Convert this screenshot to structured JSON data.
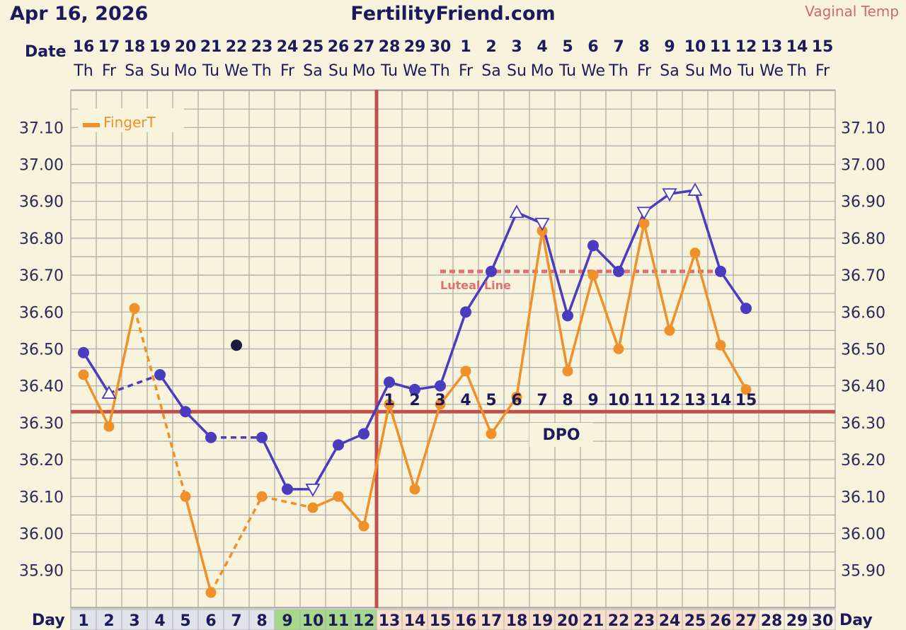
{
  "header": {
    "date": "Apr 16, 2026",
    "site": "FertilityFriend.com",
    "temp_type": "Vaginal Temp",
    "date_label": "Date",
    "day_label": "Day"
  },
  "colors": {
    "background": "#f7f3dc",
    "grid": "#aaaaaa",
    "primary_temp": "#4a3bbf",
    "finger_temp": "#f0902a",
    "coverline": "#c0504d",
    "luteal": "#e07070",
    "dpo_text": "#1c1a5c",
    "fertile_cell": "#a6d88a",
    "luteal_cell": "#fadfc8",
    "early_cell": "#e2e2ea"
  },
  "chart_data": {
    "type": "line",
    "title": "FertilityFriend.com",
    "ylim": [
      35.82,
      37.2
    ],
    "yticks": [
      "35.90",
      "36.00",
      "36.10",
      "36.20",
      "36.30",
      "36.40",
      "36.50",
      "36.60",
      "36.70",
      "36.80",
      "36.90",
      "37.00",
      "37.10"
    ],
    "dates": [
      "16",
      "17",
      "18",
      "19",
      "20",
      "21",
      "22",
      "23",
      "24",
      "25",
      "26",
      "27",
      "28",
      "29",
      "30",
      "1",
      "2",
      "3",
      "4",
      "5",
      "6",
      "7",
      "8",
      "9",
      "10",
      "11",
      "12",
      "13",
      "14",
      "15"
    ],
    "weekdays": [
      "Th",
      "Fr",
      "Sa",
      "Su",
      "Mo",
      "Tu",
      "We",
      "Th",
      "Fr",
      "Sa",
      "Su",
      "Mo",
      "Tu",
      "We",
      "Th",
      "Fr",
      "Sa",
      "Su",
      "Mo",
      "Tu",
      "We",
      "Th",
      "Fr",
      "Sa",
      "Su",
      "Mo",
      "Tu",
      "We",
      "Th",
      "Fr"
    ],
    "cycle_days": [
      "1",
      "2",
      "3",
      "4",
      "5",
      "6",
      "7",
      "8",
      "9",
      "10",
      "11",
      "12",
      "13",
      "14",
      "15",
      "16",
      "17",
      "18",
      "19",
      "20",
      "21",
      "22",
      "23",
      "24",
      "25",
      "26",
      "27",
      "28",
      "29",
      "30"
    ],
    "fertile_days": [
      9,
      10,
      11,
      12
    ],
    "luteal_days": [
      13,
      27
    ],
    "series": [
      {
        "values": [
          36.49,
          36.38,
          null,
          36.43,
          36.33,
          36.26,
          null,
          36.26,
          36.12,
          36.12,
          36.24,
          36.27,
          36.41,
          36.39,
          36.4,
          36.6,
          36.71,
          36.87,
          36.84,
          36.59,
          36.78,
          36.71,
          36.87,
          36.92,
          36.93,
          36.71,
          36.61,
          null,
          null,
          null
        ],
        "markers": [
          "dot",
          "tri-up",
          "none",
          "dot",
          "dot",
          "dot",
          "none",
          "dot",
          "dot",
          "tri-down",
          "dot",
          "dot",
          "dot",
          "dot",
          "dot",
          "dot",
          "dot",
          "tri-up",
          "tri-down",
          "dot",
          "dot",
          "dot",
          "tri-down",
          "tri-down",
          "tri-up",
          "dot",
          "dot",
          "none",
          "none",
          "none"
        ]
      },
      {
        "name": "FingerT",
        "values": [
          36.43,
          36.29,
          36.61,
          null,
          36.1,
          35.84,
          null,
          36.1,
          null,
          36.07,
          36.1,
          36.02,
          36.35,
          36.12,
          36.35,
          36.44,
          36.27,
          36.37,
          36.82,
          36.44,
          36.7,
          36.5,
          36.84,
          36.55,
          36.76,
          36.51,
          36.39,
          null,
          null,
          null
        ]
      }
    ],
    "discarded_points": [
      {
        "day": 7,
        "value": 36.51
      }
    ],
    "coverline": 36.33,
    "ovulation_day": 12,
    "luteal_line": {
      "value": 36.71,
      "from_day": 15,
      "to_day": 26,
      "label": "Luteal Line"
    },
    "dpo": {
      "label": "DPO",
      "start_day": 13,
      "numbers": [
        "1",
        "2",
        "3",
        "4",
        "5",
        "6",
        "7",
        "8",
        "9",
        "10",
        "11",
        "12",
        "13",
        "14",
        "15"
      ]
    },
    "legend": "top-left",
    "grid": true
  }
}
